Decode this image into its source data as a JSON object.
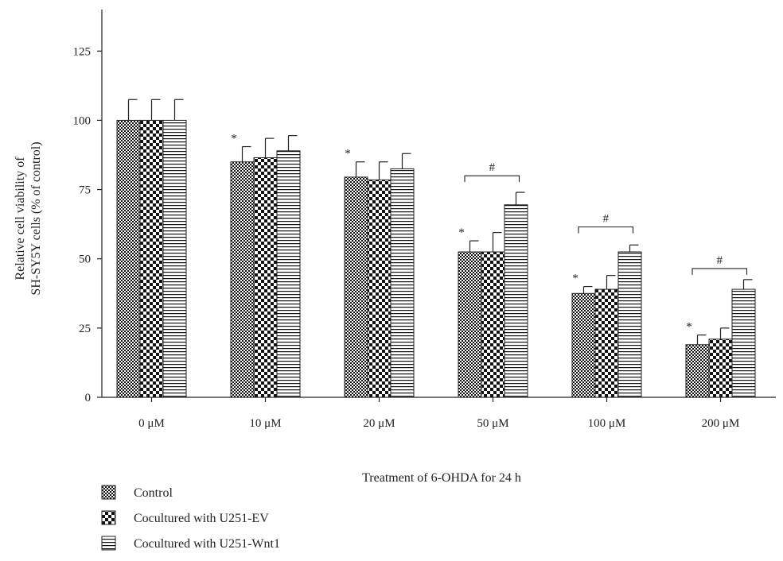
{
  "chart_data": {
    "type": "bar",
    "title": "",
    "xlabel": "Treatment of 6-OHDA for 24 h",
    "ylabel_line1": "Relative cell viability of",
    "ylabel_line2": "SH-SY5Y cells (% of control)",
    "ylim": [
      0,
      140
    ],
    "yticks": [
      0,
      25,
      50,
      75,
      100,
      125
    ],
    "categories": [
      "0 μM",
      "10 μM",
      "20 μM",
      "50 μM",
      "100 μM",
      "200 μM"
    ],
    "series": [
      {
        "name": "Control",
        "pattern": "dense-check",
        "values": [
          100,
          85,
          79.5,
          52.5,
          37.5,
          19
        ],
        "errors": [
          7.5,
          5.5,
          5.5,
          4,
          2.5,
          3.5
        ]
      },
      {
        "name": "Cocultured with U251-EV",
        "pattern": "checkerboard",
        "values": [
          100,
          86.5,
          78.5,
          52.5,
          39,
          21
        ],
        "errors": [
          7.5,
          7,
          6.5,
          7,
          5,
          4
        ]
      },
      {
        "name": "Cocultured with U251-Wnt1",
        "pattern": "horizontal-lines",
        "values": [
          100,
          89,
          82.5,
          69.5,
          52.5,
          39
        ],
        "errors": [
          7.5,
          5.5,
          5.5,
          4.5,
          2.5,
          3.5
        ]
      }
    ],
    "star_annotations": [
      {
        "category_index": 1,
        "series_index": 0,
        "text": "*"
      },
      {
        "category_index": 2,
        "series_index": 0,
        "text": "*"
      },
      {
        "category_index": 3,
        "series_index": 0,
        "text": "*"
      },
      {
        "category_index": 4,
        "series_index": 0,
        "text": "*"
      },
      {
        "category_index": 5,
        "series_index": 0,
        "text": "*"
      }
    ],
    "bracket_annotations": [
      {
        "category_index": 3,
        "y": 80,
        "text": "#"
      },
      {
        "category_index": 4,
        "y": 61.5,
        "text": "#"
      },
      {
        "category_index": 5,
        "y": 46.5,
        "text": "#"
      }
    ],
    "legend_position": "bottom-left",
    "grid": false
  }
}
